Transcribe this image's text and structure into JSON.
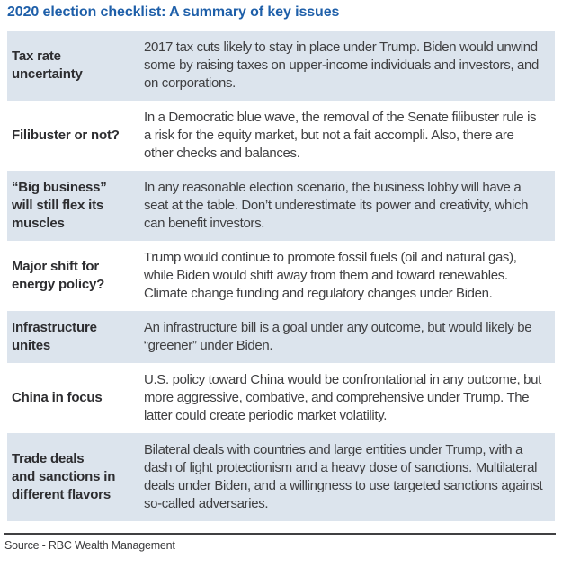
{
  "title": "2020 election checklist: A summary of key issues",
  "table": {
    "rows": [
      {
        "label": "Tax rate\nuncertainty",
        "text": "2017 tax cuts likely to stay in place under Trump. Biden would unwind some by raising taxes on upper-income individuals and investors, and on corporations.",
        "shaded": true
      },
      {
        "label": "Filibuster or not?",
        "text": "In a Democratic blue wave, the removal of the Senate filibuster rule is a risk for the equity market, but not a fait accompli. Also, there are other checks and balances.",
        "shaded": false
      },
      {
        "label": "“Big business”\nwill still flex its\nmuscles",
        "text": "In any reasonable election scenario, the business lobby will have a seat at the table. Don’t underestimate its power and creativity, which can benefit investors.",
        "shaded": true
      },
      {
        "label": "Major shift for\nenergy policy?",
        "text": "Trump would continue to promote fossil fuels (oil and natural gas), while Biden would shift away from them and toward renewables. Climate change funding and regulatory changes under Biden.",
        "shaded": false
      },
      {
        "label": "Infrastructure\nunites",
        "text": "An infrastructure bill is a goal under any outcome, but would likely be “greener” under Biden.",
        "shaded": true
      },
      {
        "label": "China in focus",
        "text": "U.S. policy toward China would be confrontational in any outcome, but more aggressive, combative, and comprehensive under Trump. The latter could create periodic market volatility.",
        "shaded": false
      },
      {
        "label": "Trade deals\nand sanctions in\ndifferent flavors",
        "text": "Bilateral deals with countries and large entities under Trump, with a dash of light protectionism and a heavy dose of sanctions. Multilateral deals under Biden, and a willingness to use targeted sanctions against so-called adversaries.",
        "shaded": true
      }
    ]
  },
  "footer": {
    "source": "Source - RBC Wealth Management"
  },
  "colors": {
    "title_blue": "#1e5fa9",
    "row_shade": "#dce4ed",
    "label_text": "#2d2d30",
    "body_text": "#3f3f41",
    "rule": "#404042"
  }
}
